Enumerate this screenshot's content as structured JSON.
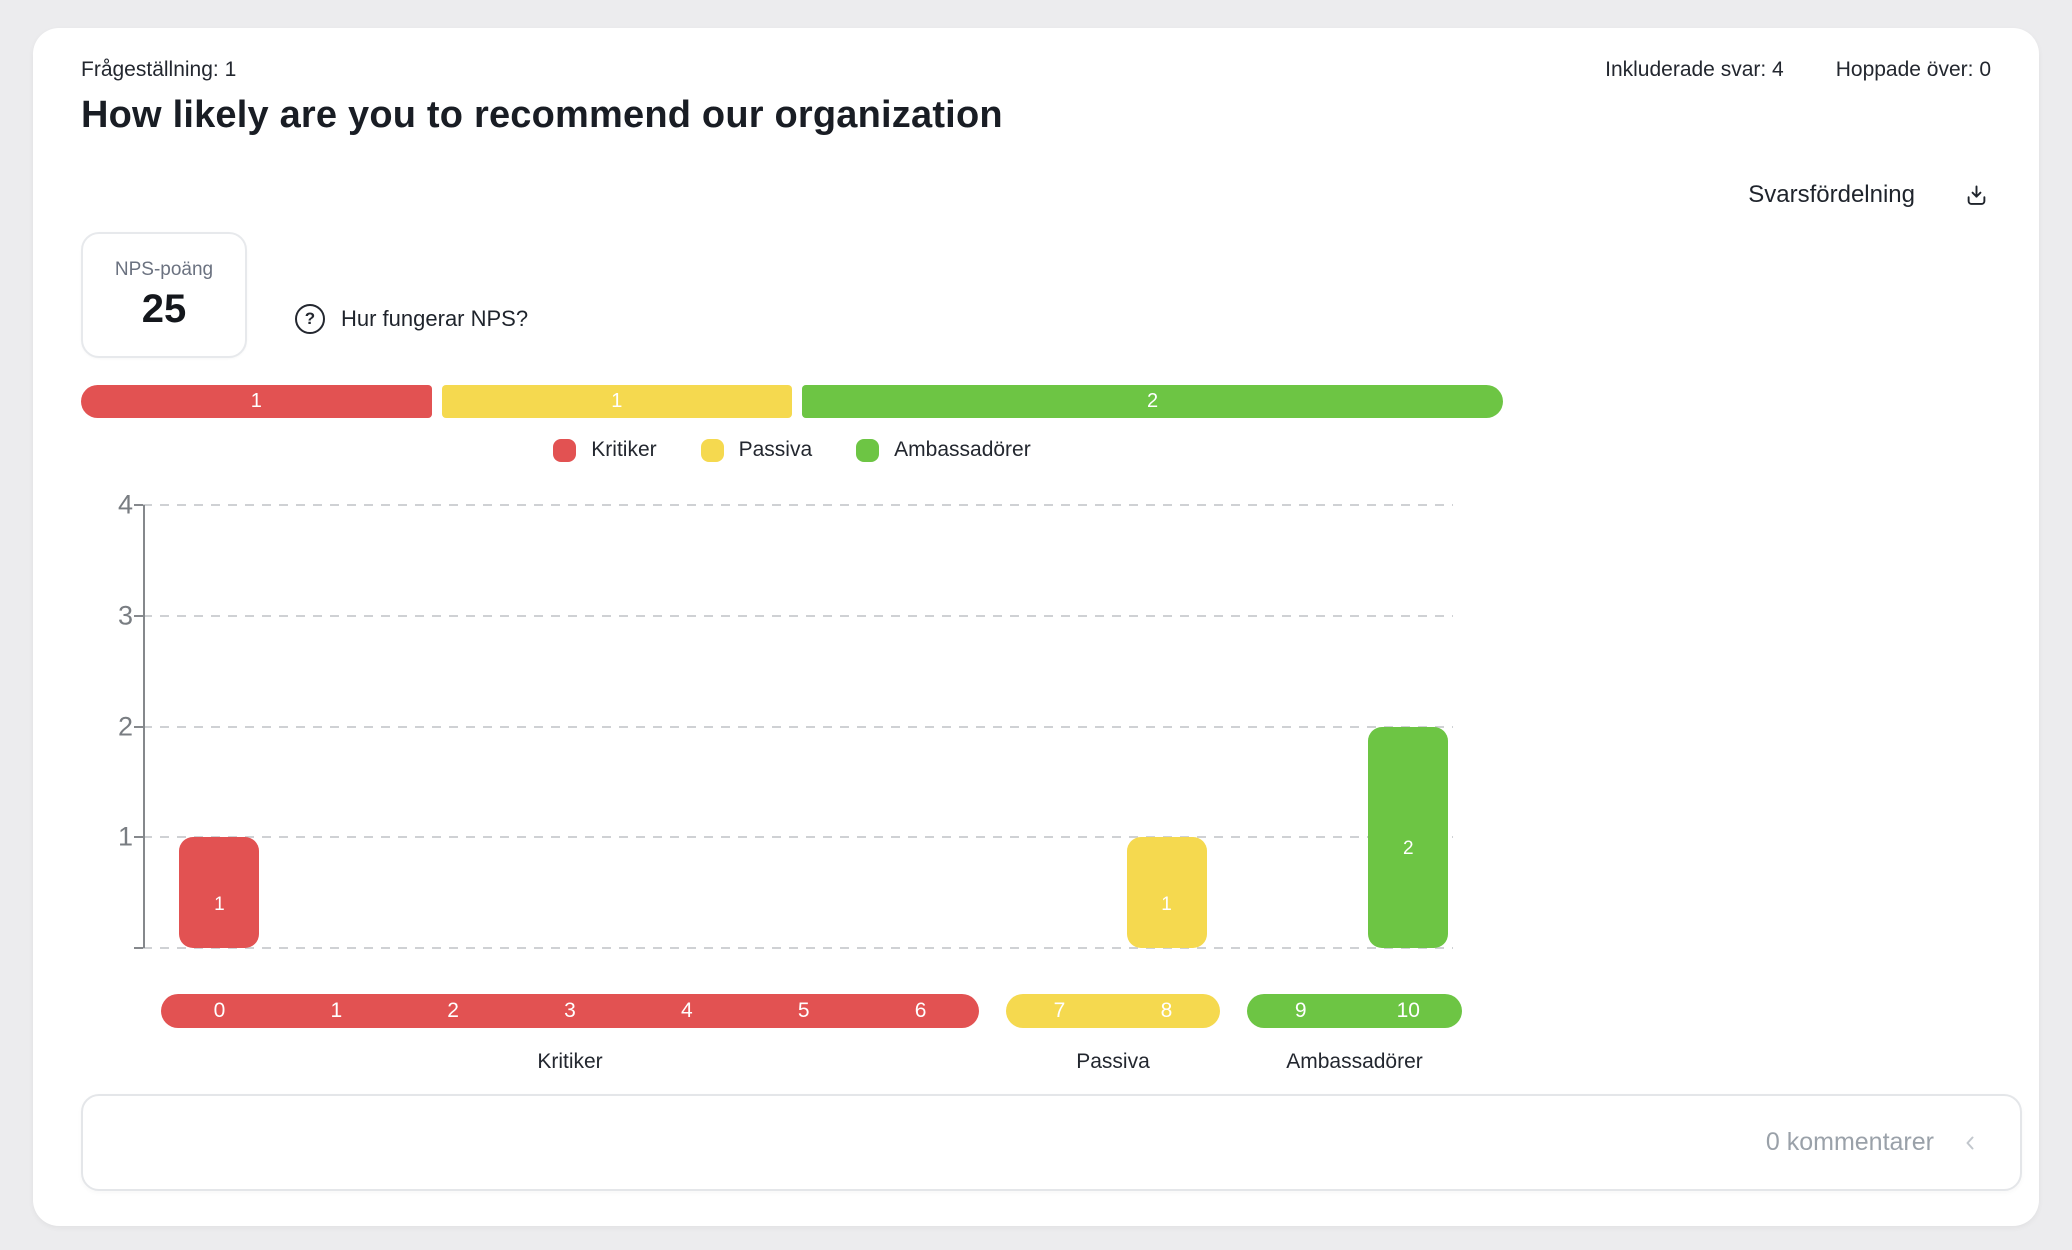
{
  "header": {
    "question_label": "Frågeställning: 1",
    "title": "How likely are you to recommend our organization",
    "included_responses": "Inkluderade svar: 4",
    "skipped": "Hoppade över: 0"
  },
  "section": {
    "distribution_title": "Svarsfördelning"
  },
  "nps": {
    "box_label": "NPS-poäng",
    "score": "25",
    "help_icon": "?",
    "help_text": "Hur fungerar NPS?"
  },
  "colors": {
    "detractor": "#e25252",
    "passive": "#f5d94f",
    "promoter": "#6dc544"
  },
  "summary_bar": {
    "segments": [
      {
        "label": "1",
        "value": 1,
        "group": "detractor"
      },
      {
        "label": "1",
        "value": 1,
        "group": "passive"
      },
      {
        "label": "2",
        "value": 2,
        "group": "promoter"
      }
    ]
  },
  "legend": [
    {
      "label": "Kritiker",
      "group": "detractor"
    },
    {
      "label": "Passiva",
      "group": "passive"
    },
    {
      "label": "Ambassadörer",
      "group": "promoter"
    }
  ],
  "chart_data": {
    "type": "bar",
    "title": "Svarsfördelning",
    "x": [
      0,
      1,
      2,
      3,
      4,
      5,
      6,
      7,
      8,
      9,
      10
    ],
    "values": [
      1,
      0,
      0,
      0,
      0,
      0,
      0,
      0,
      1,
      0,
      2
    ],
    "bar_value_labels": [
      "1",
      "",
      "",
      "",
      "",
      "",
      "",
      "",
      "1",
      "",
      "2"
    ],
    "ylim": [
      0,
      4
    ],
    "yticks": [
      1,
      2,
      3,
      4
    ],
    "grid": true,
    "legend_position": "top",
    "groups": [
      {
        "name": "Kritiker",
        "group": "detractor",
        "scores": [
          0,
          1,
          2,
          3,
          4,
          5,
          6
        ]
      },
      {
        "name": "Passiva",
        "group": "passive",
        "scores": [
          7,
          8
        ]
      },
      {
        "name": "Ambassadörer",
        "group": "promoter",
        "scores": [
          9,
          10
        ]
      }
    ]
  },
  "footer": {
    "comments_label": "0 kommentarer"
  }
}
